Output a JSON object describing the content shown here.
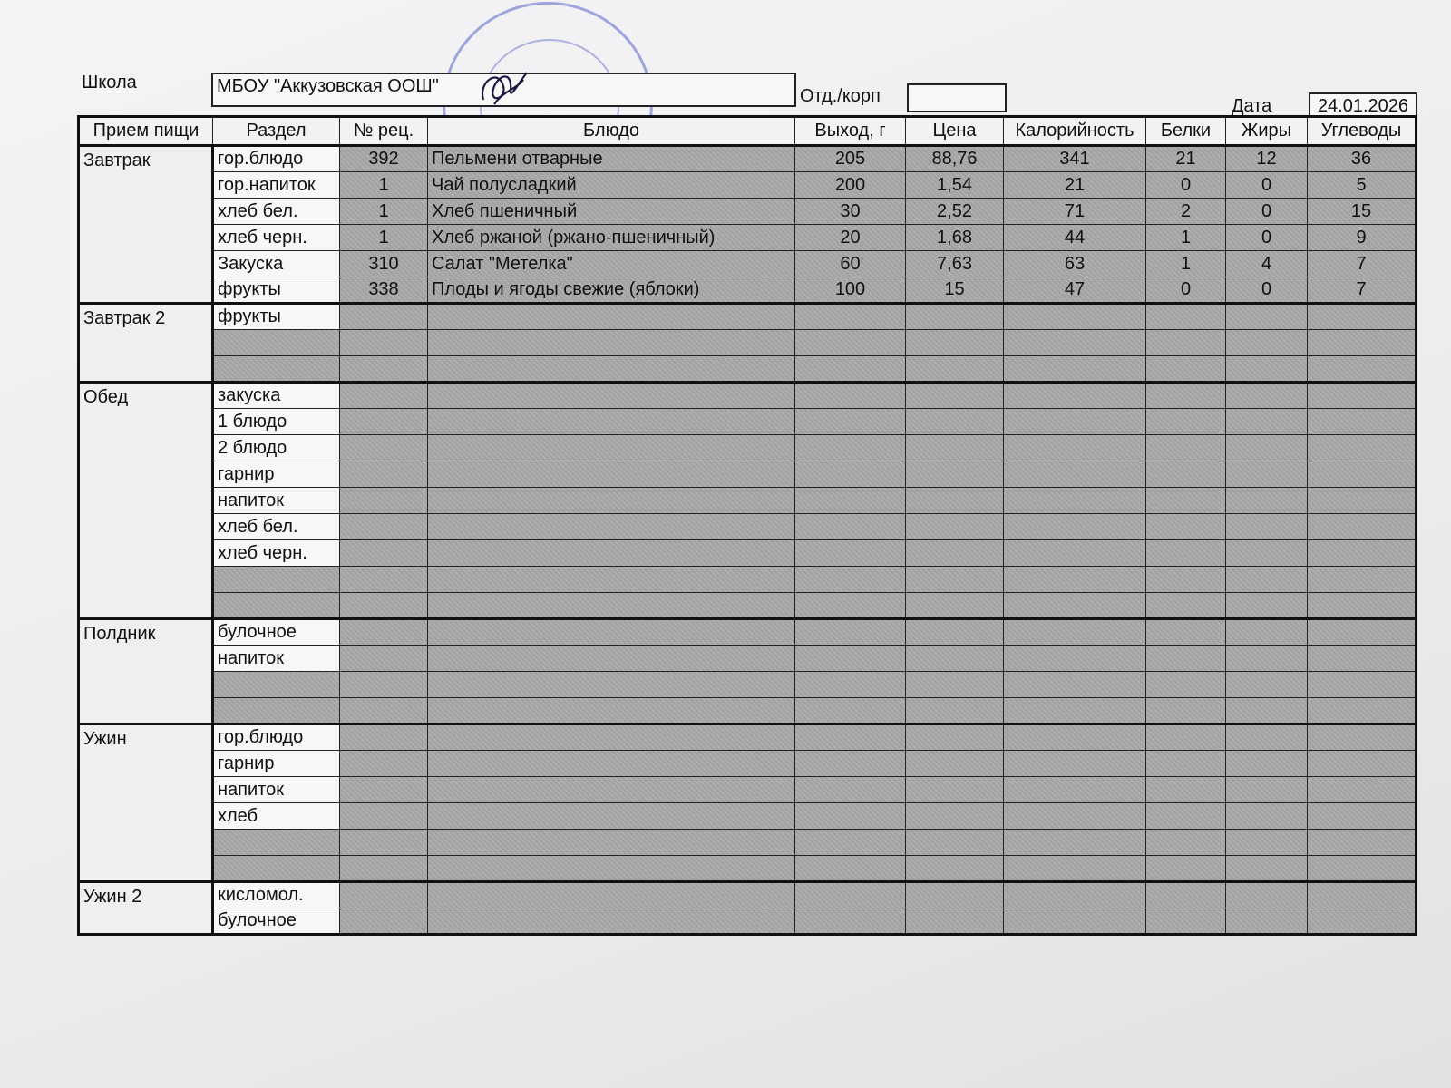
{
  "header": {
    "school_label": "Школа",
    "school_value": "МБОУ \"Аккузовская ООШ\"",
    "dept_label": "Отд./корп",
    "dept_value": "",
    "date_label": "Дата",
    "date_value": "24.01.2026"
  },
  "stamp": {
    "text": "МБОУ \"Аккузовская ООШ\""
  },
  "columns": [
    "Прием пищи",
    "Раздел",
    "№ рец.",
    "Блюдо",
    "Выход, г",
    "Цена",
    "Калорийность",
    "Белки",
    "Жиры",
    "Углеводы"
  ],
  "meals": [
    {
      "name": "Завтрак",
      "rows": [
        {
          "section": "гор.блюдо",
          "recipe": "392",
          "dish": "Пельмени отварные",
          "yield": "205",
          "price": "88,76",
          "kcal": "341",
          "protein": "21",
          "fat": "12",
          "carbs": "36"
        },
        {
          "section": "гор.напиток",
          "recipe": "1",
          "dish": "Чай полусладкий",
          "yield": "200",
          "price": "1,54",
          "kcal": "21",
          "protein": "0",
          "fat": "0",
          "carbs": "5"
        },
        {
          "section": "хлеб бел.",
          "recipe": "1",
          "dish": "Хлеб пшеничный",
          "yield": "30",
          "price": "2,52",
          "kcal": "71",
          "protein": "2",
          "fat": "0",
          "carbs": "15"
        },
        {
          "section": "хлеб черн.",
          "recipe": "1",
          "dish": "Хлеб ржаной (ржано-пшеничный)",
          "yield": "20",
          "price": "1,68",
          "kcal": "44",
          "protein": "1",
          "fat": "0",
          "carbs": "9"
        },
        {
          "section": "Закуска",
          "recipe": "310",
          "dish": "Салат \"Метелка\"",
          "yield": "60",
          "price": "7,63",
          "kcal": "63",
          "protein": "1",
          "fat": "4",
          "carbs": "7"
        },
        {
          "section": "фрукты",
          "recipe": "338",
          "dish": "Плоды и ягоды свежие (яблоки)",
          "yield": "100",
          "price": "15",
          "kcal": "47",
          "protein": "0",
          "fat": "0",
          "carbs": "7"
        }
      ]
    },
    {
      "name": "Завтрак 2",
      "rows": [
        {
          "section": "фрукты"
        },
        {
          "section": ""
        },
        {
          "section": ""
        }
      ]
    },
    {
      "name": "Обед",
      "rows": [
        {
          "section": "закуска"
        },
        {
          "section": "1 блюдо"
        },
        {
          "section": "2 блюдо"
        },
        {
          "section": "гарнир"
        },
        {
          "section": "напиток"
        },
        {
          "section": "хлеб бел."
        },
        {
          "section": "хлеб черн."
        },
        {
          "section": ""
        },
        {
          "section": ""
        }
      ]
    },
    {
      "name": "Полдник",
      "rows": [
        {
          "section": "булочное"
        },
        {
          "section": "напиток"
        },
        {
          "section": ""
        },
        {
          "section": ""
        }
      ]
    },
    {
      "name": "Ужин",
      "rows": [
        {
          "section": "гор.блюдо"
        },
        {
          "section": "гарнир"
        },
        {
          "section": "напиток"
        },
        {
          "section": "хлеб"
        },
        {
          "section": ""
        },
        {
          "section": ""
        }
      ]
    },
    {
      "name": "Ужин 2",
      "rows": [
        {
          "section": "кисломол."
        },
        {
          "section": "булочное"
        }
      ]
    }
  ]
}
